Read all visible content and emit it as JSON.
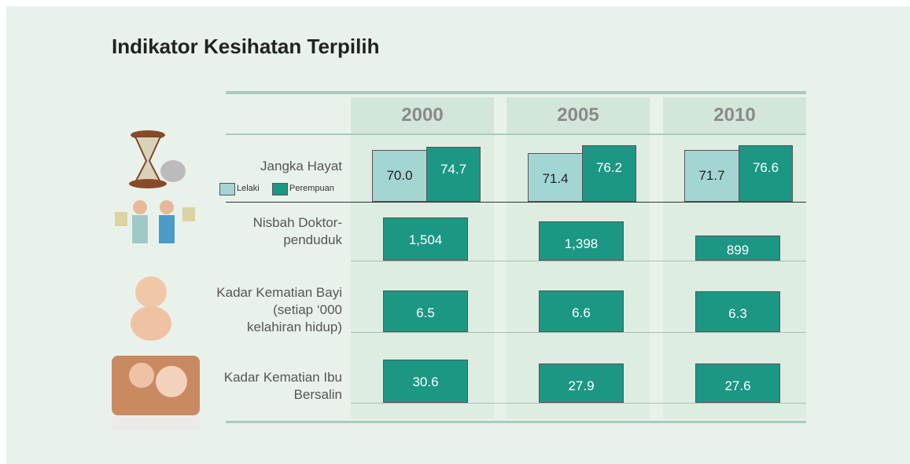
{
  "title": "Indikator Kesihatan Terpilih",
  "years": [
    "2000",
    "2005",
    "2010"
  ],
  "legend": [
    "Lelaki",
    "Perempuan"
  ],
  "rows": [
    {
      "label": "Jangka Hayat",
      "values": [
        [
          "70.0",
          "74.7"
        ],
        [
          "71.4",
          "76.2"
        ],
        [
          "71.7",
          "76.6"
        ]
      ]
    },
    {
      "label": "Nisbah Doktor-penduduk",
      "values": [
        "1,504",
        "1,398",
        "899"
      ]
    },
    {
      "label": "Kadar Kematian Bayi (setiap ‘000 kelahiran hidup)",
      "values": [
        "6.5",
        "6.6",
        "6.3"
      ]
    },
    {
      "label": "Kadar Kematian Ibu Bersalin",
      "values": [
        "30.6",
        "27.9",
        "27.6"
      ]
    }
  ]
}
